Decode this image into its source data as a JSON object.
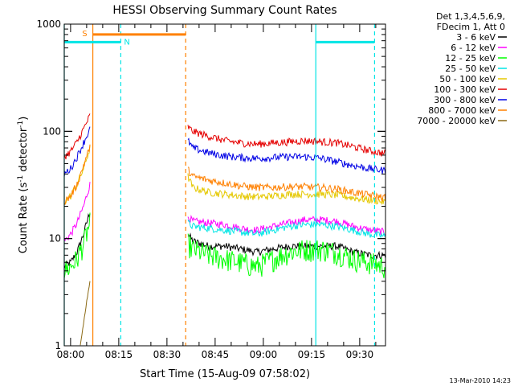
{
  "chart_data": {
    "type": "line",
    "title": "HESSI Observing Summary Count Rates",
    "xlabel": "Start Time (15-Aug-09 07:58:02)",
    "ylabel_main": "Count Rate (s",
    "ylabel_sup1": "-1",
    "ylabel_mid": " detector",
    "ylabel_sup2": "-1",
    "ylabel_end": ")",
    "y_scale": "log",
    "ylim": [
      1,
      1000
    ],
    "x_unit": "minutes after 07:58:02",
    "xlim": [
      0,
      100
    ],
    "x_ticks": [
      {
        "label": "08:00",
        "value": 1.97
      },
      {
        "label": "08:15",
        "value": 16.97
      },
      {
        "label": "08:30",
        "value": 31.97
      },
      {
        "label": "08:45",
        "value": 46.97
      },
      {
        "label": "09:00",
        "value": 61.97
      },
      {
        "label": "09:15",
        "value": 76.97
      },
      {
        "label": "09:30",
        "value": 91.97
      }
    ],
    "y_ticks": [
      {
        "label": "1",
        "value": 1
      },
      {
        "label": "10",
        "value": 10
      },
      {
        "label": "100",
        "value": 100
      },
      {
        "label": "1000",
        "value": 1000
      }
    ],
    "legend_header": [
      "Det 1,3,4,5,6,9,",
      "FDecim 1, Att 0"
    ],
    "legend_position": "outside-right",
    "series": [
      {
        "name": "3 - 6 keV",
        "color": "#000000",
        "segments": [
          {
            "x": [
              0,
              2,
              4,
              6,
              8
            ],
            "y": [
              5.5,
              6,
              7.5,
              11,
              18
            ]
          },
          {
            "x": [
              38.5,
              40,
              45,
              50,
              55,
              60,
              65,
              70,
              75,
              80,
              85,
              90,
              95,
              100
            ],
            "y": [
              11,
              9.5,
              8.5,
              8.5,
              8,
              7.5,
              8,
              8.5,
              8.5,
              8.5,
              8.5,
              7.5,
              7,
              7
            ]
          }
        ]
      },
      {
        "name": "6 - 12 keV",
        "color": "#ff00ff",
        "segments": [
          {
            "x": [
              0,
              2,
              4,
              6,
              8
            ],
            "y": [
              9.5,
              11,
              14,
              20,
              32
            ]
          },
          {
            "x": [
              38.5,
              40,
              45,
              50,
              55,
              60,
              65,
              70,
              75,
              80,
              85,
              90,
              95,
              100
            ],
            "y": [
              16,
              14.5,
              14,
              13.5,
              12.5,
              12,
              13,
              14,
              15,
              15,
              14.5,
              13,
              12,
              11.5
            ]
          }
        ]
      },
      {
        "name": "12 - 25 keV",
        "color": "#00ff00",
        "segments": [
          {
            "x": [
              0,
              2,
              4,
              6,
              8
            ],
            "y": [
              5,
              5.5,
              6.5,
              9,
              14
            ]
          },
          {
            "x": [
              38.5,
              40,
              45,
              50,
              55,
              60,
              65,
              70,
              75,
              80,
              85,
              90,
              95,
              100
            ],
            "y": [
              9,
              8,
              7,
              6.5,
              6,
              5.5,
              6.5,
              7.5,
              8,
              8,
              7.5,
              6.5,
              6,
              5.5
            ]
          }
        ]
      },
      {
        "name": "25 - 50 keV",
        "color": "#00e5e5",
        "segments": [
          {
            "x": [
              38.5,
              40,
              45,
              50,
              55,
              60,
              65,
              70,
              75,
              80,
              85,
              90,
              95,
              100
            ],
            "y": [
              14,
              13,
              12.5,
              12,
              11.5,
              11,
              12,
              13,
              13.5,
              13.5,
              13,
              12,
              11,
              10.5
            ]
          }
        ]
      },
      {
        "name": "50 - 100 keV",
        "color": "#e5c800",
        "segments": [
          {
            "x": [
              0,
              2,
              4,
              6,
              8
            ],
            "y": [
              22,
              25,
              32,
              45,
              70
            ]
          },
          {
            "x": [
              38.5,
              40,
              45,
              50,
              55,
              60,
              65,
              70,
              75,
              80,
              85,
              90,
              95,
              100
            ],
            "y": [
              38,
              30,
              27,
              26,
              25,
              24.5,
              25,
              26,
              26,
              26,
              25.5,
              24,
              23,
              22
            ]
          }
        ]
      },
      {
        "name": "100 - 300 keV",
        "color": "#e50000",
        "segments": [
          {
            "x": [
              0,
              2,
              4,
              6,
              8
            ],
            "y": [
              58,
              65,
              80,
              105,
              140
            ]
          },
          {
            "x": [
              38.5,
              40,
              45,
              50,
              55,
              60,
              65,
              70,
              75,
              80,
              85,
              90,
              95,
              100
            ],
            "y": [
              110,
              100,
              90,
              82,
              78,
              76,
              78,
              80,
              82,
              80,
              78,
              72,
              66,
              62
            ]
          }
        ]
      },
      {
        "name": "300 - 800 keV",
        "color": "#0000e5",
        "segments": [
          {
            "x": [
              0,
              2,
              4,
              6,
              8
            ],
            "y": [
              40,
              45,
              58,
              78,
              105
            ]
          },
          {
            "x": [
              38.5,
              40,
              45,
              50,
              55,
              60,
              65,
              70,
              75,
              80,
              85,
              90,
              95,
              100
            ],
            "y": [
              82,
              70,
              63,
              59,
              57,
              56,
              57,
              58,
              58,
              56,
              52,
              48,
              45,
              43
            ]
          }
        ]
      },
      {
        "name": "800 - 7000 keV",
        "color": "#ff8000",
        "segments": [
          {
            "x": [
              0,
              2,
              4,
              6,
              8
            ],
            "y": [
              22,
              25,
              32,
              48,
              72
            ]
          },
          {
            "x": [
              38.5,
              40,
              45,
              50,
              55,
              60,
              65,
              70,
              75,
              80,
              85,
              90,
              95,
              100
            ],
            "y": [
              44,
              38,
              35,
              33,
              31,
              30,
              30,
              30.5,
              30.5,
              30,
              29,
              27,
              25.5,
              24
            ]
          }
        ]
      },
      {
        "name": "7000 - 20000 keV",
        "color": "#8b6914",
        "segments": [
          {
            "x": [
              5,
              6,
              7,
              8
            ],
            "y": [
              1,
              1.6,
              2.6,
              4
            ]
          }
        ]
      }
    ],
    "flag_bars": [
      {
        "label": "S",
        "color": "#ff8000",
        "x_start": 8.9,
        "x_end": 37.8,
        "y": 800
      },
      {
        "label": "N",
        "color": "#00e5e5",
        "x_start": 0,
        "x_end": 17.6,
        "y": 680
      },
      {
        "label": "",
        "color": "#00e5e5",
        "x_start": 78.3,
        "x_end": 96.6,
        "y": 680
      }
    ],
    "vlines": [
      {
        "x": 0,
        "color": "#00e5e5",
        "style": "solid"
      },
      {
        "x": 8.9,
        "color": "#ff8000",
        "style": "solid"
      },
      {
        "x": 17.6,
        "color": "#00e5e5",
        "style": "dashed"
      },
      {
        "x": 37.8,
        "color": "#ff8000",
        "style": "dashed"
      },
      {
        "x": 78.3,
        "color": "#00e5e5",
        "style": "solid"
      },
      {
        "x": 96.6,
        "color": "#00e5e5",
        "style": "dashed"
      }
    ],
    "footer": "13-Mar-2010 14:23"
  }
}
